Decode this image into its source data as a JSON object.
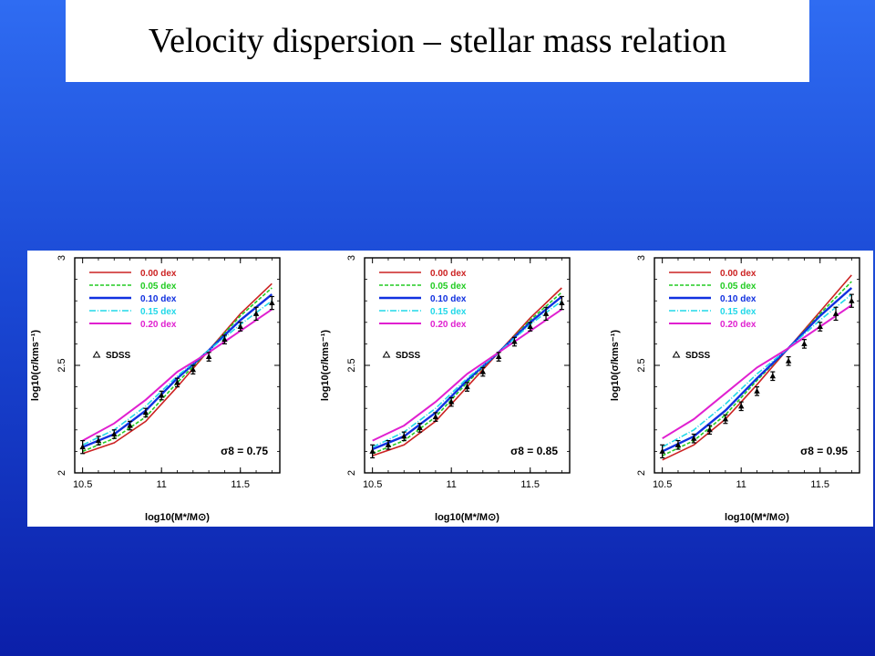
{
  "slide": {
    "title": "Velocity dispersion – stellar mass relation"
  },
  "colors": {
    "background_top": "#2f6cf2",
    "background_bottom": "#0b1fa9",
    "series": [
      "#cc2222",
      "#22cc22",
      "#1030e0",
      "#20d8e8",
      "#e020d0"
    ]
  },
  "chart_data": [
    {
      "type": "line",
      "xlabel": "log10(M*/M⊙)",
      "ylabel": "log10(σ/kms⁻¹)",
      "xlim": [
        10.45,
        11.75
      ],
      "ylim": [
        2,
        3
      ],
      "x_ticks": [
        "10.5",
        "11",
        "11.5"
      ],
      "y_ticks": [
        "2",
        "2.5",
        "3"
      ],
      "annotation": "σ8 = 0.75",
      "legend_position": "top-left",
      "series": [
        {
          "name": "0.00 dex",
          "x": [
            10.5,
            10.7,
            10.9,
            11.1,
            11.3,
            11.5,
            11.7
          ],
          "y": [
            2.09,
            2.14,
            2.24,
            2.4,
            2.57,
            2.74,
            2.88
          ]
        },
        {
          "name": "0.05 dex",
          "x": [
            10.5,
            10.7,
            10.9,
            11.1,
            11.3,
            11.5,
            11.7
          ],
          "y": [
            2.1,
            2.16,
            2.26,
            2.42,
            2.57,
            2.73,
            2.86
          ]
        },
        {
          "name": "0.10 dex",
          "x": [
            10.5,
            10.7,
            10.9,
            11.1,
            11.3,
            11.5,
            11.7
          ],
          "y": [
            2.12,
            2.18,
            2.29,
            2.44,
            2.57,
            2.71,
            2.83
          ]
        },
        {
          "name": "0.15 dex",
          "x": [
            10.5,
            10.7,
            10.9,
            11.1,
            11.3,
            11.5,
            11.7
          ],
          "y": [
            2.13,
            2.2,
            2.31,
            2.45,
            2.57,
            2.69,
            2.8
          ]
        },
        {
          "name": "0.20 dex",
          "x": [
            10.5,
            10.7,
            10.9,
            11.1,
            11.3,
            11.5,
            11.7
          ],
          "y": [
            2.15,
            2.23,
            2.34,
            2.47,
            2.56,
            2.66,
            2.76
          ]
        }
      ],
      "sdss": {
        "name": "SDSS",
        "x": [
          10.5,
          10.6,
          10.7,
          10.8,
          10.9,
          11.0,
          11.1,
          11.2,
          11.3,
          11.4,
          11.5,
          11.6,
          11.7
        ],
        "y": [
          2.12,
          2.15,
          2.18,
          2.22,
          2.28,
          2.36,
          2.42,
          2.48,
          2.54,
          2.62,
          2.68,
          2.74,
          2.79
        ],
        "err": [
          0.03,
          0.02,
          0.02,
          0.02,
          0.02,
          0.02,
          0.02,
          0.02,
          0.02,
          0.02,
          0.02,
          0.03,
          0.03
        ]
      }
    },
    {
      "type": "line",
      "xlabel": "log10(M*/M⊙)",
      "ylabel": "log10(σ/kms⁻¹)",
      "xlim": [
        10.45,
        11.75
      ],
      "ylim": [
        2,
        3
      ],
      "x_ticks": [
        "10.5",
        "11",
        "11.5"
      ],
      "y_ticks": [
        "2",
        "2.5",
        "3"
      ],
      "annotation": "σ8 = 0.85",
      "legend_position": "top-left",
      "series": [
        {
          "name": "0.00 dex",
          "x": [
            10.5,
            10.7,
            10.9,
            11.1,
            11.3,
            11.5,
            11.7
          ],
          "y": [
            2.08,
            2.13,
            2.24,
            2.4,
            2.56,
            2.72,
            2.86
          ]
        },
        {
          "name": "0.05 dex",
          "x": [
            10.5,
            10.7,
            10.9,
            11.1,
            11.3,
            11.5,
            11.7
          ],
          "y": [
            2.09,
            2.15,
            2.26,
            2.42,
            2.56,
            2.71,
            2.84
          ]
        },
        {
          "name": "0.10 dex",
          "x": [
            10.5,
            10.7,
            10.9,
            11.1,
            11.3,
            11.5,
            11.7
          ],
          "y": [
            2.11,
            2.17,
            2.28,
            2.43,
            2.56,
            2.7,
            2.82
          ]
        },
        {
          "name": "0.15 dex",
          "x": [
            10.5,
            10.7,
            10.9,
            11.1,
            11.3,
            11.5,
            11.7
          ],
          "y": [
            2.12,
            2.19,
            2.3,
            2.44,
            2.56,
            2.69,
            2.8
          ]
        },
        {
          "name": "0.20 dex",
          "x": [
            10.5,
            10.7,
            10.9,
            11.1,
            11.3,
            11.5,
            11.7
          ],
          "y": [
            2.15,
            2.22,
            2.33,
            2.46,
            2.56,
            2.66,
            2.76
          ]
        }
      ],
      "sdss": {
        "name": "SDSS",
        "x": [
          10.5,
          10.6,
          10.7,
          10.8,
          10.9,
          11.0,
          11.1,
          11.2,
          11.3,
          11.4,
          11.5,
          11.6,
          11.7
        ],
        "y": [
          2.1,
          2.13,
          2.17,
          2.21,
          2.26,
          2.33,
          2.4,
          2.47,
          2.54,
          2.61,
          2.68,
          2.74,
          2.79
        ],
        "err": [
          0.03,
          0.02,
          0.02,
          0.02,
          0.02,
          0.02,
          0.02,
          0.02,
          0.02,
          0.02,
          0.02,
          0.03,
          0.03
        ]
      }
    },
    {
      "type": "line",
      "xlabel": "log10(M*/M⊙)",
      "ylabel": "log10(σ/kms⁻¹)",
      "xlim": [
        10.45,
        11.75
      ],
      "ylim": [
        2,
        3
      ],
      "x_ticks": [
        "10.5",
        "11",
        "11.5"
      ],
      "y_ticks": [
        "2",
        "2.5",
        "3"
      ],
      "annotation": "σ8 = 0.95",
      "legend_position": "top-left",
      "series": [
        {
          "name": "0.00 dex",
          "x": [
            10.5,
            10.7,
            10.9,
            11.1,
            11.3,
            11.5,
            11.7
          ],
          "y": [
            2.06,
            2.13,
            2.25,
            2.41,
            2.58,
            2.75,
            2.92
          ]
        },
        {
          "name": "0.05 dex",
          "x": [
            10.5,
            10.7,
            10.9,
            11.1,
            11.3,
            11.5,
            11.7
          ],
          "y": [
            2.08,
            2.15,
            2.27,
            2.43,
            2.58,
            2.74,
            2.89
          ]
        },
        {
          "name": "0.10 dex",
          "x": [
            10.5,
            10.7,
            10.9,
            11.1,
            11.3,
            11.5,
            11.7
          ],
          "y": [
            2.1,
            2.17,
            2.29,
            2.44,
            2.58,
            2.73,
            2.86
          ]
        },
        {
          "name": "0.15 dex",
          "x": [
            10.5,
            10.7,
            10.9,
            11.1,
            11.3,
            11.5,
            11.7
          ],
          "y": [
            2.12,
            2.2,
            2.32,
            2.46,
            2.58,
            2.71,
            2.83
          ]
        },
        {
          "name": "0.20 dex",
          "x": [
            10.5,
            10.7,
            10.9,
            11.1,
            11.3,
            11.5,
            11.7
          ],
          "y": [
            2.16,
            2.25,
            2.37,
            2.49,
            2.58,
            2.68,
            2.78
          ]
        }
      ],
      "sdss": {
        "name": "SDSS",
        "x": [
          10.5,
          10.6,
          10.7,
          10.8,
          10.9,
          11.0,
          11.1,
          11.2,
          11.3,
          11.4,
          11.5,
          11.6,
          11.7
        ],
        "y": [
          2.1,
          2.13,
          2.16,
          2.2,
          2.25,
          2.31,
          2.38,
          2.45,
          2.52,
          2.6,
          2.68,
          2.74,
          2.8
        ],
        "err": [
          0.03,
          0.02,
          0.02,
          0.02,
          0.02,
          0.02,
          0.02,
          0.02,
          0.02,
          0.02,
          0.02,
          0.03,
          0.03
        ]
      }
    }
  ]
}
